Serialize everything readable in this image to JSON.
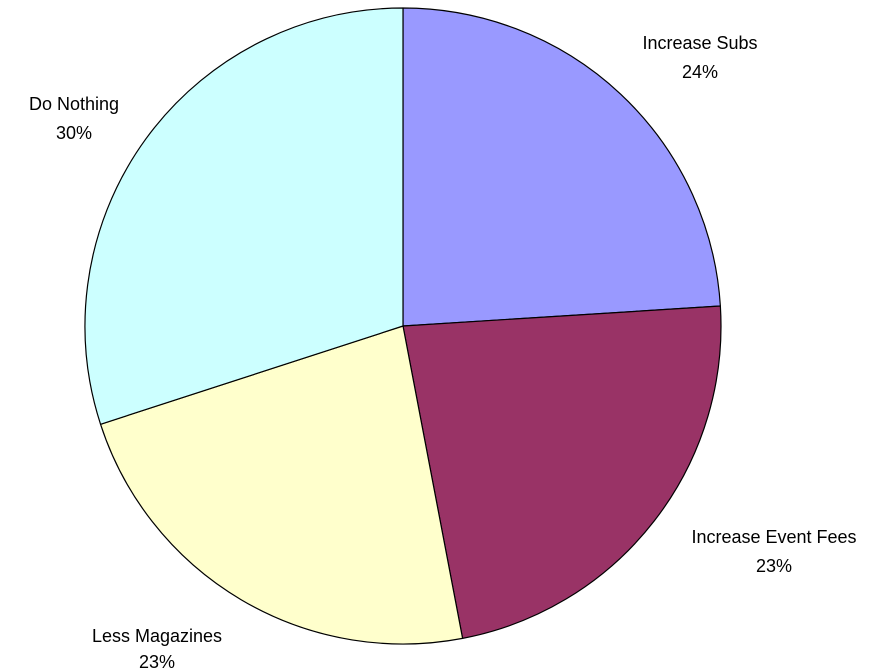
{
  "chart_data": {
    "type": "pie",
    "title": "",
    "slices": [
      {
        "name": "Increase Subs",
        "label": "24%",
        "value": 24,
        "color": "#9999ff"
      },
      {
        "name": "Increase Event Fees",
        "label": "23%",
        "value": 23,
        "color": "#993366"
      },
      {
        "name": "Less Magazines",
        "label": "23%",
        "value": 23,
        "color": "#ffffcc"
      },
      {
        "name": "Do Nothing",
        "label": "30%",
        "value": 30,
        "color": "#ccffff"
      }
    ],
    "start_angle_deg": 0,
    "direction": "clockwise",
    "legend": "none"
  }
}
